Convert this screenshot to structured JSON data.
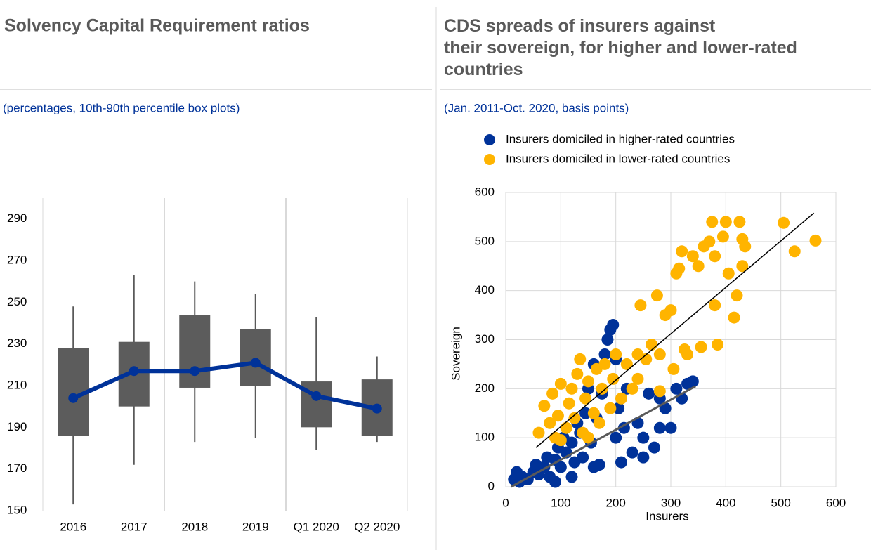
{
  "chart_data": [
    {
      "type": "box",
      "title": "Solvency Capital Requirement ratios",
      "subtitle": "(percentages, 10th-90th percentile box plots)",
      "categories": [
        "2016",
        "2017",
        "2018",
        "2019",
        "Q1 2020",
        "Q2 2020"
      ],
      "whisker_low": [
        153,
        172,
        183,
        185,
        179,
        183
      ],
      "box_low": [
        186,
        200,
        209,
        210,
        190,
        186
      ],
      "box_high": [
        228,
        231,
        244,
        237,
        212,
        213
      ],
      "whisker_high": [
        248,
        263,
        260,
        254,
        243,
        224
      ],
      "median": [
        204,
        217,
        217,
        221,
        205,
        199
      ],
      "box_color": "#5c5c5c",
      "median_color": "#003299",
      "ylim": [
        150,
        300
      ],
      "yticks": [
        150,
        170,
        190,
        210,
        230,
        250,
        270,
        290
      ]
    },
    {
      "type": "scatter",
      "title": "CDS spreads of insurers against their sovereign, for higher and lower-rated countries",
      "subtitle": "(Jan. 2011-Oct. 2020, basis points)",
      "x_label": "Insurers",
      "y_label": "Sovereign",
      "xlim": [
        0,
        600
      ],
      "xticks": [
        0,
        100,
        200,
        300,
        400,
        500,
        600
      ],
      "ylim": [
        0,
        600
      ],
      "yticks": [
        0,
        100,
        200,
        300,
        400,
        500,
        600
      ],
      "grid": true,
      "series": [
        {
          "name": "Insurers domiciled in higher-rated countries",
          "color": "#003299",
          "x": [
            15,
            20,
            25,
            30,
            40,
            50,
            55,
            60,
            70,
            75,
            80,
            90,
            95,
            100,
            105,
            110,
            120,
            125,
            130,
            135,
            140,
            145,
            150,
            155,
            160,
            165,
            170,
            175,
            180,
            185,
            190,
            195,
            200,
            205,
            210,
            215,
            220,
            230,
            240,
            250,
            260,
            270,
            280,
            290,
            300,
            310,
            320,
            330,
            340,
            280,
            250,
            200,
            160,
            120,
            90
          ],
          "y": [
            15,
            30,
            10,
            20,
            15,
            30,
            45,
            25,
            40,
            60,
            20,
            55,
            80,
            40,
            100,
            70,
            90,
            50,
            130,
            110,
            60,
            150,
            200,
            90,
            250,
            140,
            45,
            190,
            270,
            300,
            320,
            330,
            260,
            160,
            50,
            120,
            200,
            70,
            130,
            100,
            190,
            80,
            120,
            160,
            120,
            200,
            180,
            210,
            215,
            180,
            60,
            100,
            40,
            20,
            10
          ]
        },
        {
          "name": "Insurers domiciled in lower-rated countries",
          "color": "#ffb400",
          "x": [
            60,
            70,
            80,
            85,
            90,
            95,
            100,
            110,
            115,
            120,
            125,
            130,
            135,
            140,
            145,
            150,
            160,
            165,
            170,
            175,
            180,
            190,
            195,
            200,
            210,
            220,
            230,
            240,
            245,
            255,
            265,
            275,
            280,
            290,
            300,
            305,
            310,
            315,
            320,
            325,
            330,
            340,
            350,
            355,
            360,
            370,
            375,
            380,
            385,
            395,
            400,
            405,
            415,
            420,
            425,
            430,
            430,
            435,
            505,
            525,
            563,
            380,
            280,
            240,
            150,
            100
          ],
          "y": [
            110,
            165,
            130,
            190,
            100,
            145,
            210,
            120,
            170,
            200,
            140,
            230,
            260,
            110,
            180,
            215,
            150,
            240,
            130,
            200,
            250,
            160,
            220,
            270,
            180,
            250,
            200,
            270,
            370,
            260,
            290,
            390,
            270,
            350,
            360,
            240,
            435,
            445,
            480,
            280,
            270,
            470,
            450,
            285,
            490,
            500,
            540,
            470,
            290,
            510,
            540,
            435,
            345,
            390,
            540,
            505,
            450,
            490,
            538,
            480,
            502,
            370,
            195,
            220,
            100,
            95
          ]
        }
      ],
      "trend_lines": [
        {
          "color": "#000000",
          "x": [
            55,
            560
          ],
          "y": [
            80,
            558
          ]
        },
        {
          "color": "#595959",
          "x": [
            10,
            345
          ],
          "y": [
            0,
            205
          ]
        }
      ]
    }
  ]
}
